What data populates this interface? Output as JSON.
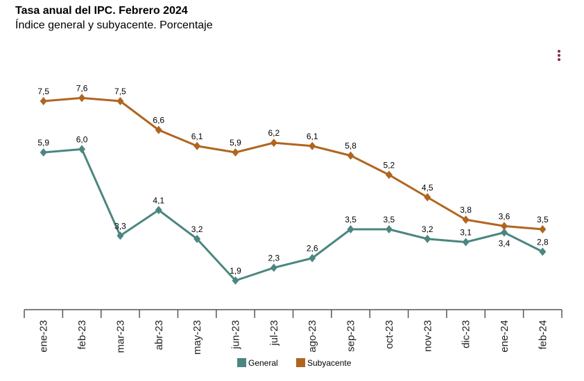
{
  "header": {
    "title": "Tasa anual del IPC. Febrero 2024",
    "subtitle": "Índice general y subyacente. Porcentaje",
    "menu_icon": "vertical-ellipsis-icon"
  },
  "chart_data": {
    "type": "line",
    "title": "Tasa anual del IPC. Febrero 2024",
    "subtitle": "Índice general y subyacente. Porcentaje",
    "categories": [
      "ene-23",
      "feb-23",
      "mar-23",
      "abr-23",
      "may-23",
      "jun-23",
      "jul-23",
      "ago-23",
      "sep-23",
      "oct-23",
      "nov-23",
      "dic-23",
      "ene-24",
      "feb-24"
    ],
    "series": [
      {
        "name": "General",
        "color": "#4b8680",
        "values": [
          5.9,
          6.0,
          3.3,
          4.1,
          3.2,
          1.9,
          2.3,
          2.6,
          3.5,
          3.5,
          3.2,
          3.1,
          3.4,
          2.8
        ],
        "labels": [
          "5,9",
          "6,0",
          "3,3",
          "4,1",
          "3,2",
          "1,9",
          "2,3",
          "2,6",
          "3,5",
          "3,5",
          "3,2",
          "3,1",
          "3,4",
          "2,8"
        ]
      },
      {
        "name": "Subyacente",
        "color": "#b0651f",
        "values": [
          7.5,
          7.6,
          7.5,
          6.6,
          6.1,
          5.9,
          6.2,
          6.1,
          5.8,
          5.2,
          4.5,
          3.8,
          3.6,
          3.5
        ],
        "labels": [
          "7,5",
          "7,6",
          "7,5",
          "6,6",
          "6,1",
          "5,9",
          "6,2",
          "6,1",
          "5,8",
          "5,2",
          "4,5",
          "3,8",
          "3,6",
          "3,5"
        ]
      }
    ],
    "grid": false,
    "legend": "bottom-center",
    "marker": "diamond"
  }
}
